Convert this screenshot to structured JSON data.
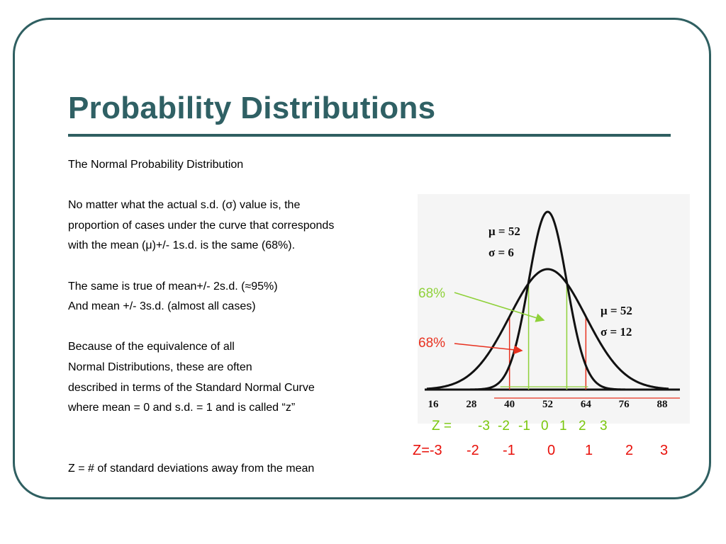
{
  "title": "Probability Distributions",
  "body": {
    "subtitle": "The Normal Probability Distribution",
    "para1": [
      "No matter what the actual s.d. (σ) value is, the",
      "proportion of cases under the curve that corresponds",
      "with the mean (μ)+/- 1s.d. is the same (68%)."
    ],
    "para2": [
      "The same is true of mean+/- 2s.d. (≈95%)",
      "And mean +/- 3s.d. (almost all cases)"
    ],
    "para3": [
      "Because of the equivalence of all",
      "Normal Distributions, these are often",
      "described in terms of the Standard Normal Curve",
      "where mean = 0 and s.d. = 1 and is called “z”"
    ],
    "footer": "Z = # of standard deviations away from the mean"
  },
  "chart_data": {
    "type": "line",
    "x_ticks": [
      16,
      28,
      40,
      52,
      64,
      76,
      88
    ],
    "xlim": [
      16,
      88
    ],
    "series": [
      {
        "mean": 52,
        "sd": 6,
        "label_mu": "μ = 52",
        "label_sigma": "σ = 6"
      },
      {
        "mean": 52,
        "sd": 12,
        "label_mu": "μ = 52",
        "label_sigma": "σ = 12"
      }
    ],
    "annotations": {
      "green_label": "68%",
      "red_label": "68%",
      "green_bounds": [
        46,
        58
      ],
      "red_bounds": [
        40,
        64
      ]
    },
    "colors": {
      "green": "#8fd13a",
      "red": "#e8311f",
      "curve": "#111111"
    }
  },
  "z_scales": {
    "narrow_prefix": "Z =",
    "narrow_values": [
      "-3",
      "-2",
      "-1",
      "0",
      "1",
      "2",
      "3"
    ],
    "wide_prefix": "Z=-3",
    "wide_values": [
      "-2",
      "-1",
      "0",
      "1",
      "2",
      "3"
    ]
  }
}
